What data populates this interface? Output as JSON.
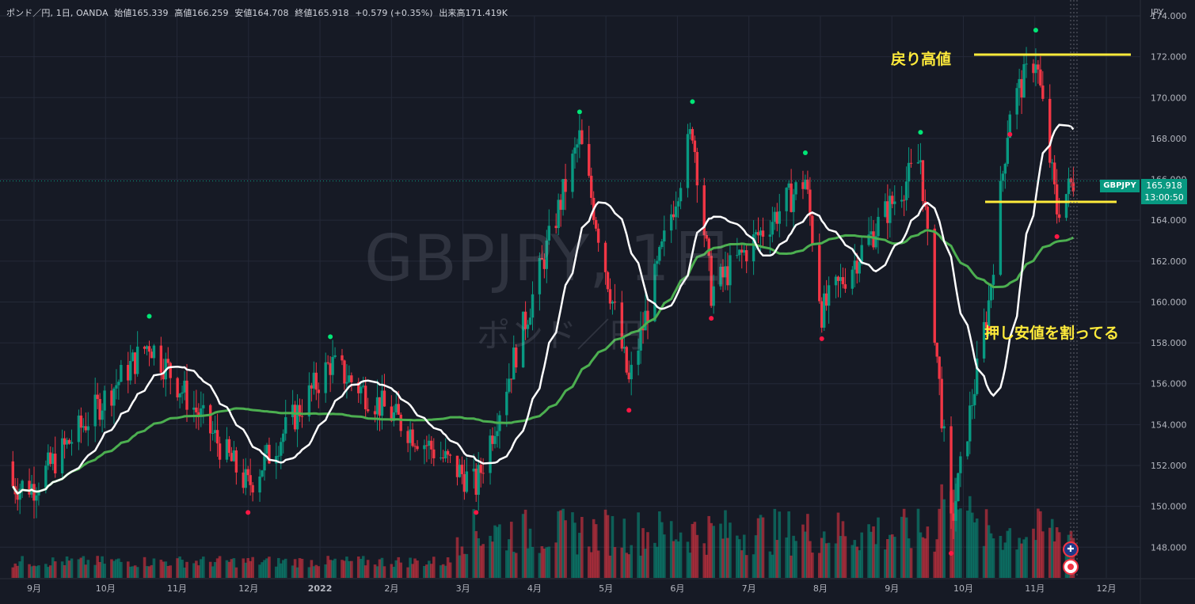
{
  "header": {
    "symbol": "ポンド／円, 1日, OANDA",
    "open": "始値165.339",
    "high": "高値166.259",
    "low": "安値164.708",
    "close": "終値165.918",
    "change": "+0.579 (+0.35%)",
    "volume": "出来高171.419K"
  },
  "watermark": {
    "main": "GBPJPY, 1日",
    "sub": "ポンド／円"
  },
  "annotations": {
    "resistance": "戻り高値",
    "support_break": "押し安値を割ってる"
  },
  "price_tag": {
    "symbol": "GBPJPY",
    "price": "165.918",
    "countdown": "13:00:50"
  },
  "axis_unit": "JPY",
  "colors": {
    "background": "#161a25",
    "up": "#089981",
    "down": "#f23645",
    "ma_fast": "#ffffff",
    "ma_slow": "#4caf50",
    "annotation": "#ffeb3b",
    "grid": "#242938"
  },
  "event_icons": [
    "uk-flag-icon",
    "japan-flag-icon"
  ],
  "chart_data": {
    "type": "candlestick",
    "title": "",
    "y_axis": {
      "ticks": [
        "148.000",
        "150.000",
        "152.000",
        "154.000",
        "156.000",
        "158.000",
        "160.000",
        "162.000",
        "164.000",
        "166.000",
        "168.000",
        "170.000",
        "172.000",
        "174.000"
      ],
      "ylim": [
        146.5,
        174.0
      ]
    },
    "x_axis": {
      "ticks": [
        "9月",
        "10月",
        "11月",
        "12月",
        "2022",
        "2月",
        "3月",
        "4月",
        "5月",
        "6月",
        "7月",
        "8月",
        "9月",
        "10月",
        "11月",
        "12月"
      ]
    },
    "last_close": 165.918,
    "key_points": [
      {
        "date": "2021-09",
        "close": 151.0
      },
      {
        "date": "2021-10-20",
        "close": 158.0
      },
      {
        "date": "2021-12",
        "close": 151.0
      },
      {
        "date": "2022-01-05",
        "close": 157.0
      },
      {
        "date": "2022-03-08",
        "close": 151.0
      },
      {
        "date": "2022-04-21",
        "close": 168.0
      },
      {
        "date": "2022-05-12",
        "close": 156.0
      },
      {
        "date": "2022-06-08",
        "close": 168.5
      },
      {
        "date": "2022-06-16",
        "close": 160.5
      },
      {
        "date": "2022-07-26",
        "close": 166.0
      },
      {
        "date": "2022-08-02",
        "close": 159.5
      },
      {
        "date": "2022-09-13",
        "close": 167.0
      },
      {
        "date": "2022-09-26",
        "close": 149.0
      },
      {
        "date": "2022-10-12",
        "close": 160.0
      },
      {
        "date": "2022-10-21",
        "close": 169.5
      },
      {
        "date": "2022-11-01",
        "close": 172.0
      },
      {
        "date": "2022-11-10",
        "close": 164.5
      },
      {
        "date": "2022-11-17",
        "close": 165.918
      }
    ],
    "levels": [
      {
        "name": "戻り高値",
        "value": 172.1
      },
      {
        "name": "押し安値を割ってる",
        "value": 164.9
      }
    ],
    "series": [
      {
        "name": "",
        "kind": "sma-fast"
      },
      {
        "name": "",
        "kind": "sma-slow"
      }
    ]
  }
}
